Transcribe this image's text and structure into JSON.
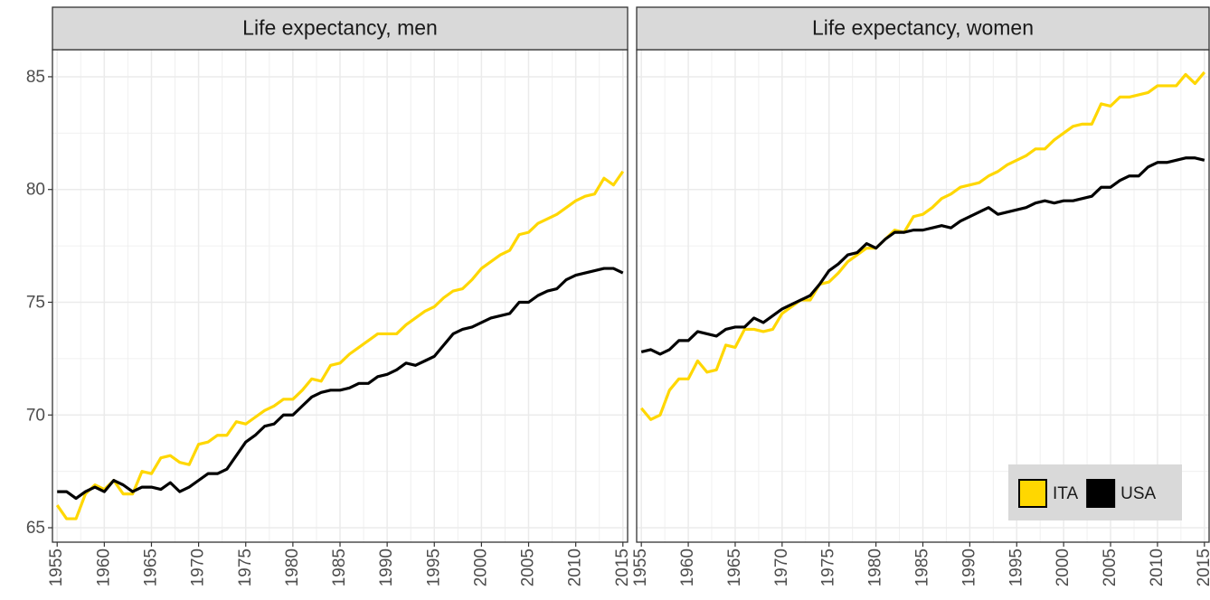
{
  "chart_data": [
    {
      "type": "line",
      "title": "Life expectancy, men",
      "x": [
        1955,
        1956,
        1957,
        1958,
        1959,
        1960,
        1961,
        1962,
        1963,
        1964,
        1965,
        1966,
        1967,
        1968,
        1969,
        1970,
        1971,
        1972,
        1973,
        1974,
        1975,
        1976,
        1977,
        1978,
        1979,
        1980,
        1981,
        1982,
        1983,
        1984,
        1985,
        1986,
        1987,
        1988,
        1989,
        1990,
        1991,
        1992,
        1993,
        1994,
        1995,
        1996,
        1997,
        1998,
        1999,
        2000,
        2001,
        2002,
        2003,
        2004,
        2005,
        2006,
        2007,
        2008,
        2009,
        2010,
        2011,
        2012,
        2013,
        2014,
        2015
      ],
      "series": [
        {
          "name": "ITA",
          "color": "#FFD700",
          "values": [
            66.0,
            65.4,
            65.4,
            66.5,
            66.9,
            66.7,
            67.1,
            66.5,
            66.5,
            67.5,
            67.4,
            68.1,
            68.2,
            67.9,
            67.8,
            68.7,
            68.8,
            69.1,
            69.1,
            69.7,
            69.6,
            69.9,
            70.2,
            70.4,
            70.7,
            70.7,
            71.1,
            71.6,
            71.5,
            72.2,
            72.3,
            72.7,
            73.0,
            73.3,
            73.6,
            73.6,
            73.6,
            74.0,
            74.3,
            74.6,
            74.8,
            75.2,
            75.5,
            75.6,
            76.0,
            76.5,
            76.8,
            77.1,
            77.3,
            78.0,
            78.1,
            78.5,
            78.7,
            78.9,
            79.2,
            79.5,
            79.7,
            79.8,
            80.5,
            80.2,
            80.8
          ]
        },
        {
          "name": "USA",
          "color": "#000000",
          "values": [
            66.6,
            66.6,
            66.3,
            66.6,
            66.8,
            66.6,
            67.1,
            66.9,
            66.6,
            66.8,
            66.8,
            66.7,
            67.0,
            66.6,
            66.8,
            67.1,
            67.4,
            67.4,
            67.6,
            68.2,
            68.8,
            69.1,
            69.5,
            69.6,
            70.0,
            70.0,
            70.4,
            70.8,
            71.0,
            71.1,
            71.1,
            71.2,
            71.4,
            71.4,
            71.7,
            71.8,
            72.0,
            72.3,
            72.2,
            72.4,
            72.6,
            73.1,
            73.6,
            73.8,
            73.9,
            74.1,
            74.3,
            74.4,
            74.5,
            75.0,
            75.0,
            75.3,
            75.5,
            75.6,
            76.0,
            76.2,
            76.3,
            76.4,
            76.5,
            76.5,
            76.3
          ]
        }
      ],
      "xlim": [
        1954.5,
        2015.5
      ],
      "ylim": [
        64.36,
        86.2
      ],
      "xticks": [
        1955,
        1960,
        1965,
        1970,
        1975,
        1980,
        1985,
        1990,
        1995,
        2000,
        2005,
        2010,
        2015
      ],
      "yticks": [
        65,
        70,
        75,
        80,
        85
      ],
      "grid": true
    },
    {
      "type": "line",
      "title": "Life expectancy, women",
      "x": [
        1955,
        1956,
        1957,
        1958,
        1959,
        1960,
        1961,
        1962,
        1963,
        1964,
        1965,
        1966,
        1967,
        1968,
        1969,
        1970,
        1971,
        1972,
        1973,
        1974,
        1975,
        1976,
        1977,
        1978,
        1979,
        1980,
        1981,
        1982,
        1983,
        1984,
        1985,
        1986,
        1987,
        1988,
        1989,
        1990,
        1991,
        1992,
        1993,
        1994,
        1995,
        1996,
        1997,
        1998,
        1999,
        2000,
        2001,
        2002,
        2003,
        2004,
        2005,
        2006,
        2007,
        2008,
        2009,
        2010,
        2011,
        2012,
        2013,
        2014,
        2015
      ],
      "series": [
        {
          "name": "ITA",
          "color": "#FFD700",
          "values": [
            70.3,
            69.8,
            70.0,
            71.1,
            71.6,
            71.6,
            72.4,
            71.9,
            72.0,
            73.1,
            73.0,
            73.8,
            73.8,
            73.7,
            73.8,
            74.5,
            74.8,
            75.1,
            75.1,
            75.8,
            75.9,
            76.3,
            76.8,
            77.1,
            77.4,
            77.4,
            77.8,
            78.2,
            78.1,
            78.8,
            78.9,
            79.2,
            79.6,
            79.8,
            80.1,
            80.2,
            80.3,
            80.6,
            80.8,
            81.1,
            81.3,
            81.5,
            81.8,
            81.8,
            82.2,
            82.5,
            82.8,
            82.9,
            82.9,
            83.8,
            83.7,
            84.1,
            84.1,
            84.2,
            84.3,
            84.6,
            84.6,
            84.6,
            85.1,
            84.7,
            85.2
          ]
        },
        {
          "name": "USA",
          "color": "#000000",
          "values": [
            72.8,
            72.9,
            72.7,
            72.9,
            73.3,
            73.3,
            73.7,
            73.6,
            73.5,
            73.8,
            73.9,
            73.9,
            74.3,
            74.1,
            74.4,
            74.7,
            74.9,
            75.1,
            75.3,
            75.8,
            76.4,
            76.7,
            77.1,
            77.2,
            77.6,
            77.4,
            77.8,
            78.1,
            78.1,
            78.2,
            78.2,
            78.3,
            78.4,
            78.3,
            78.6,
            78.8,
            79.0,
            79.2,
            78.9,
            79.0,
            79.1,
            79.2,
            79.4,
            79.5,
            79.4,
            79.5,
            79.5,
            79.6,
            79.7,
            80.1,
            80.1,
            80.4,
            80.6,
            80.6,
            81.0,
            81.2,
            81.2,
            81.3,
            81.4,
            81.4,
            81.3
          ]
        }
      ],
      "xlim": [
        1954.5,
        2015.5
      ],
      "ylim": [
        64.36,
        86.2
      ],
      "xticks": [
        1955,
        1960,
        1965,
        1970,
        1975,
        1980,
        1985,
        1990,
        1995,
        2000,
        2005,
        2010,
        2015
      ],
      "yticks": [
        65,
        70,
        75,
        80,
        85
      ],
      "grid": true,
      "legend": "bottom-right"
    }
  ]
}
